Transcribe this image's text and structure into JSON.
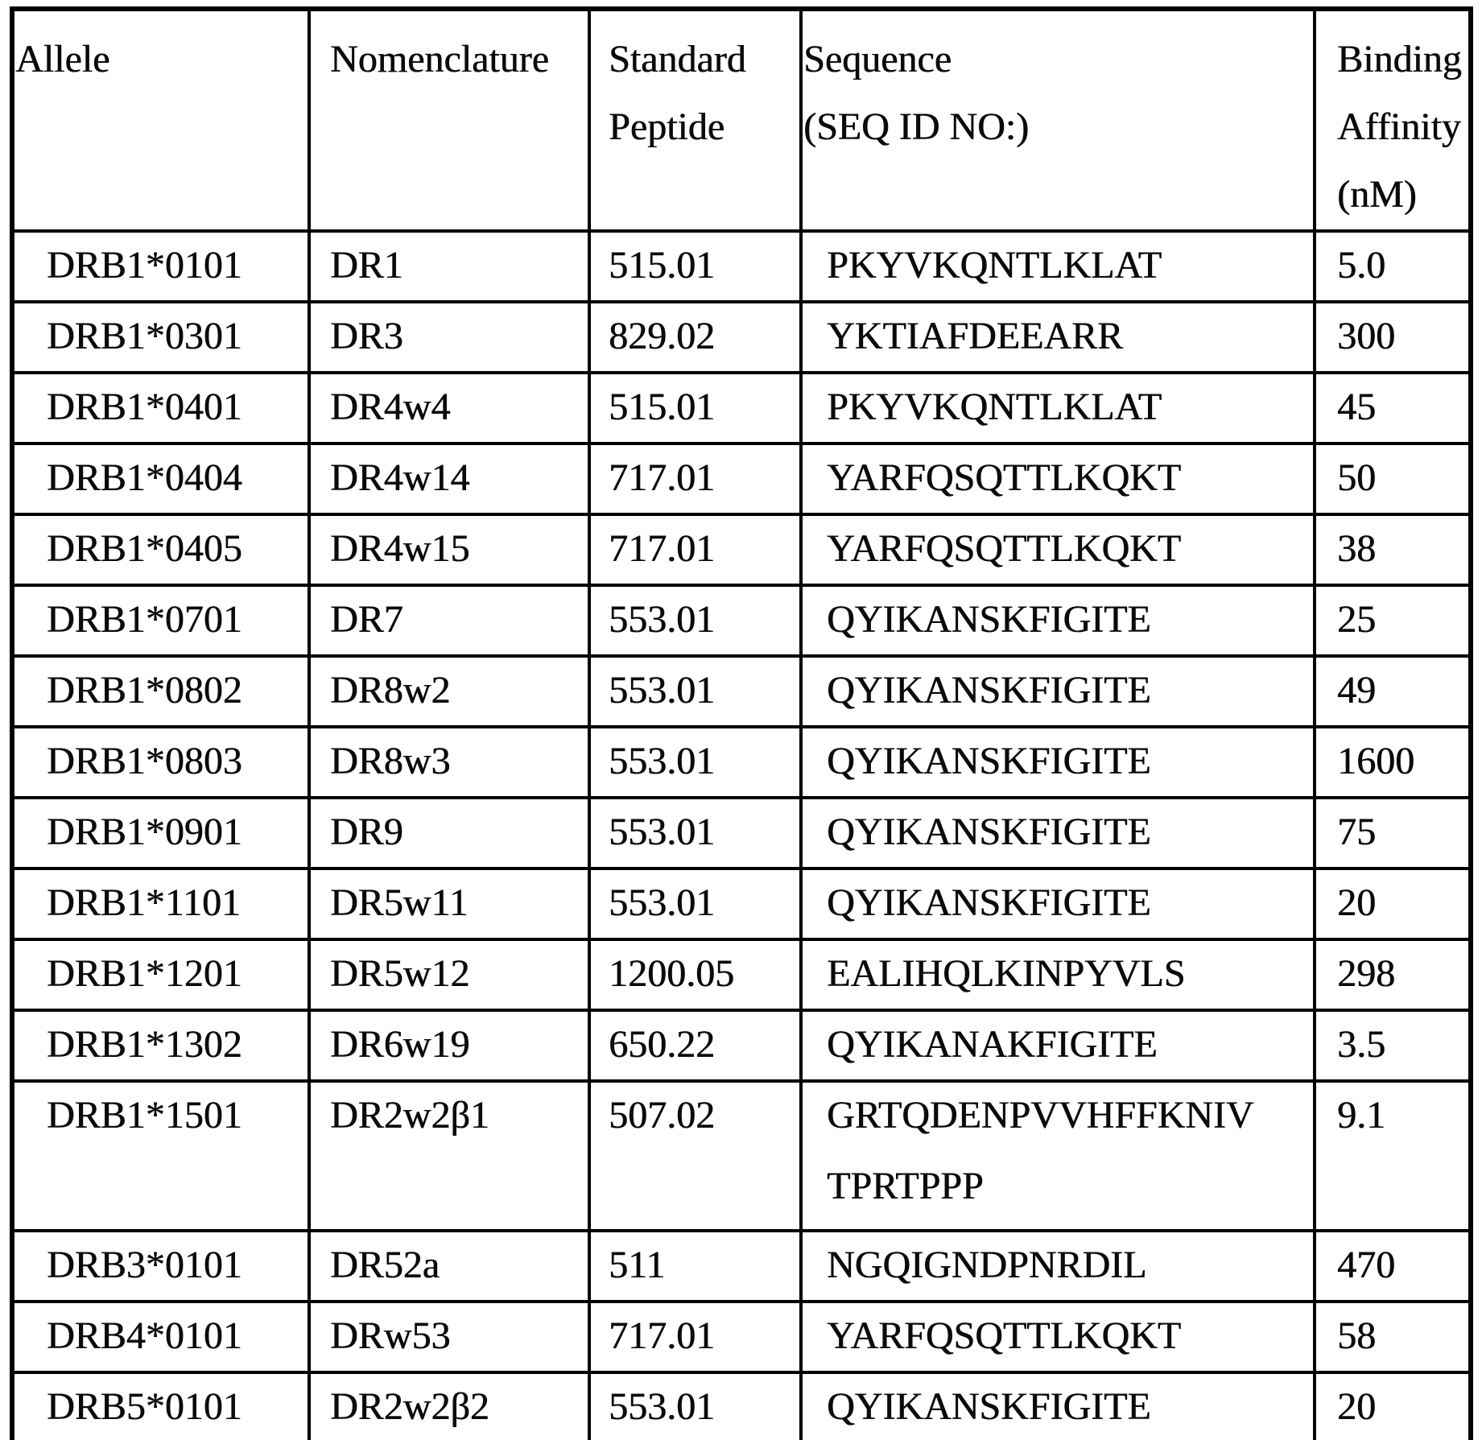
{
  "table": {
    "header": {
      "allele": "Allele",
      "nomenclature": "Nomenclature",
      "standard_line1": "Standard",
      "standard_line2": "Peptide",
      "sequence_line1": "Sequence",
      "sequence_line2": "(SEQ ID NO:)",
      "binding_line1": "Binding",
      "binding_line2": "Affinity",
      "binding_line3": "(nM)"
    },
    "rows": [
      {
        "allele": "DRB1*0101",
        "nomenclature": "DR1",
        "standard_peptide": "515.01",
        "sequence_lines": [
          "PKYVKQNTLKLAT"
        ],
        "binding_affinity": "5.0",
        "tall": false
      },
      {
        "allele": "DRB1*0301",
        "nomenclature": "DR3",
        "standard_peptide": "829.02",
        "sequence_lines": [
          "YKTIAFDEEARR"
        ],
        "binding_affinity": "300",
        "tall": false
      },
      {
        "allele": "DRB1*0401",
        "nomenclature": "DR4w4",
        "standard_peptide": "515.01",
        "sequence_lines": [
          "PKYVKQNTLKLAT"
        ],
        "binding_affinity": "45",
        "tall": false
      },
      {
        "allele": "DRB1*0404",
        "nomenclature": "DR4w14",
        "standard_peptide": "717.01",
        "sequence_lines": [
          "YARFQSQTTLKQKT"
        ],
        "binding_affinity": "50",
        "tall": false
      },
      {
        "allele": "DRB1*0405",
        "nomenclature": "DR4w15",
        "standard_peptide": "717.01",
        "sequence_lines": [
          "YARFQSQTTLKQKT"
        ],
        "binding_affinity": "38",
        "tall": false
      },
      {
        "allele": "DRB1*0701",
        "nomenclature": "DR7",
        "standard_peptide": "553.01",
        "sequence_lines": [
          "QYIKANSKFIGITE"
        ],
        "binding_affinity": "25",
        "tall": false
      },
      {
        "allele": "DRB1*0802",
        "nomenclature": "DR8w2",
        "standard_peptide": "553.01",
        "sequence_lines": [
          "QYIKANSKFIGITE"
        ],
        "binding_affinity": "49",
        "tall": false
      },
      {
        "allele": "DRB1*0803",
        "nomenclature": "DR8w3",
        "standard_peptide": "553.01",
        "sequence_lines": [
          "QYIKANSKFIGITE"
        ],
        "binding_affinity": "1600",
        "tall": false
      },
      {
        "allele": "DRB1*0901",
        "nomenclature": "DR9",
        "standard_peptide": "553.01",
        "sequence_lines": [
          "QYIKANSKFIGITE"
        ],
        "binding_affinity": "75",
        "tall": false
      },
      {
        "allele": "DRB1*1101",
        "nomenclature": "DR5w11",
        "standard_peptide": "553.01",
        "sequence_lines": [
          "QYIKANSKFIGITE"
        ],
        "binding_affinity": "20",
        "tall": false
      },
      {
        "allele": "DRB1*1201",
        "nomenclature": "DR5w12",
        "standard_peptide": "1200.05",
        "sequence_lines": [
          "EALIHQLKINPYVLS"
        ],
        "binding_affinity": "298",
        "tall": false
      },
      {
        "allele": "DRB1*1302",
        "nomenclature": "DR6w19",
        "standard_peptide": "650.22",
        "sequence_lines": [
          "QYIKANAKFIGITE"
        ],
        "binding_affinity": "3.5",
        "tall": false
      },
      {
        "allele": "DRB1*1501",
        "nomenclature": "DR2w2β1",
        "standard_peptide": "507.02",
        "sequence_lines": [
          "GRTQDENPVVHFFKNIV",
          "TPRTPPP"
        ],
        "binding_affinity": "9.1",
        "tall": true
      },
      {
        "allele": "DRB3*0101",
        "nomenclature": "DR52a",
        "standard_peptide": "511",
        "sequence_lines": [
          "NGQIGNDPNRDIL"
        ],
        "binding_affinity": "470",
        "tall": false
      },
      {
        "allele": "DRB4*0101",
        "nomenclature": "DRw53",
        "standard_peptide": "717.01",
        "sequence_lines": [
          "YARFQSQTTLKQKT"
        ],
        "binding_affinity": "58",
        "tall": false
      },
      {
        "allele": "DRB5*0101",
        "nomenclature": "DR2w2β2",
        "standard_peptide": "553.01",
        "sequence_lines": [
          "QYIKANSKFIGITE"
        ],
        "binding_affinity": "20",
        "tall": false
      }
    ]
  }
}
